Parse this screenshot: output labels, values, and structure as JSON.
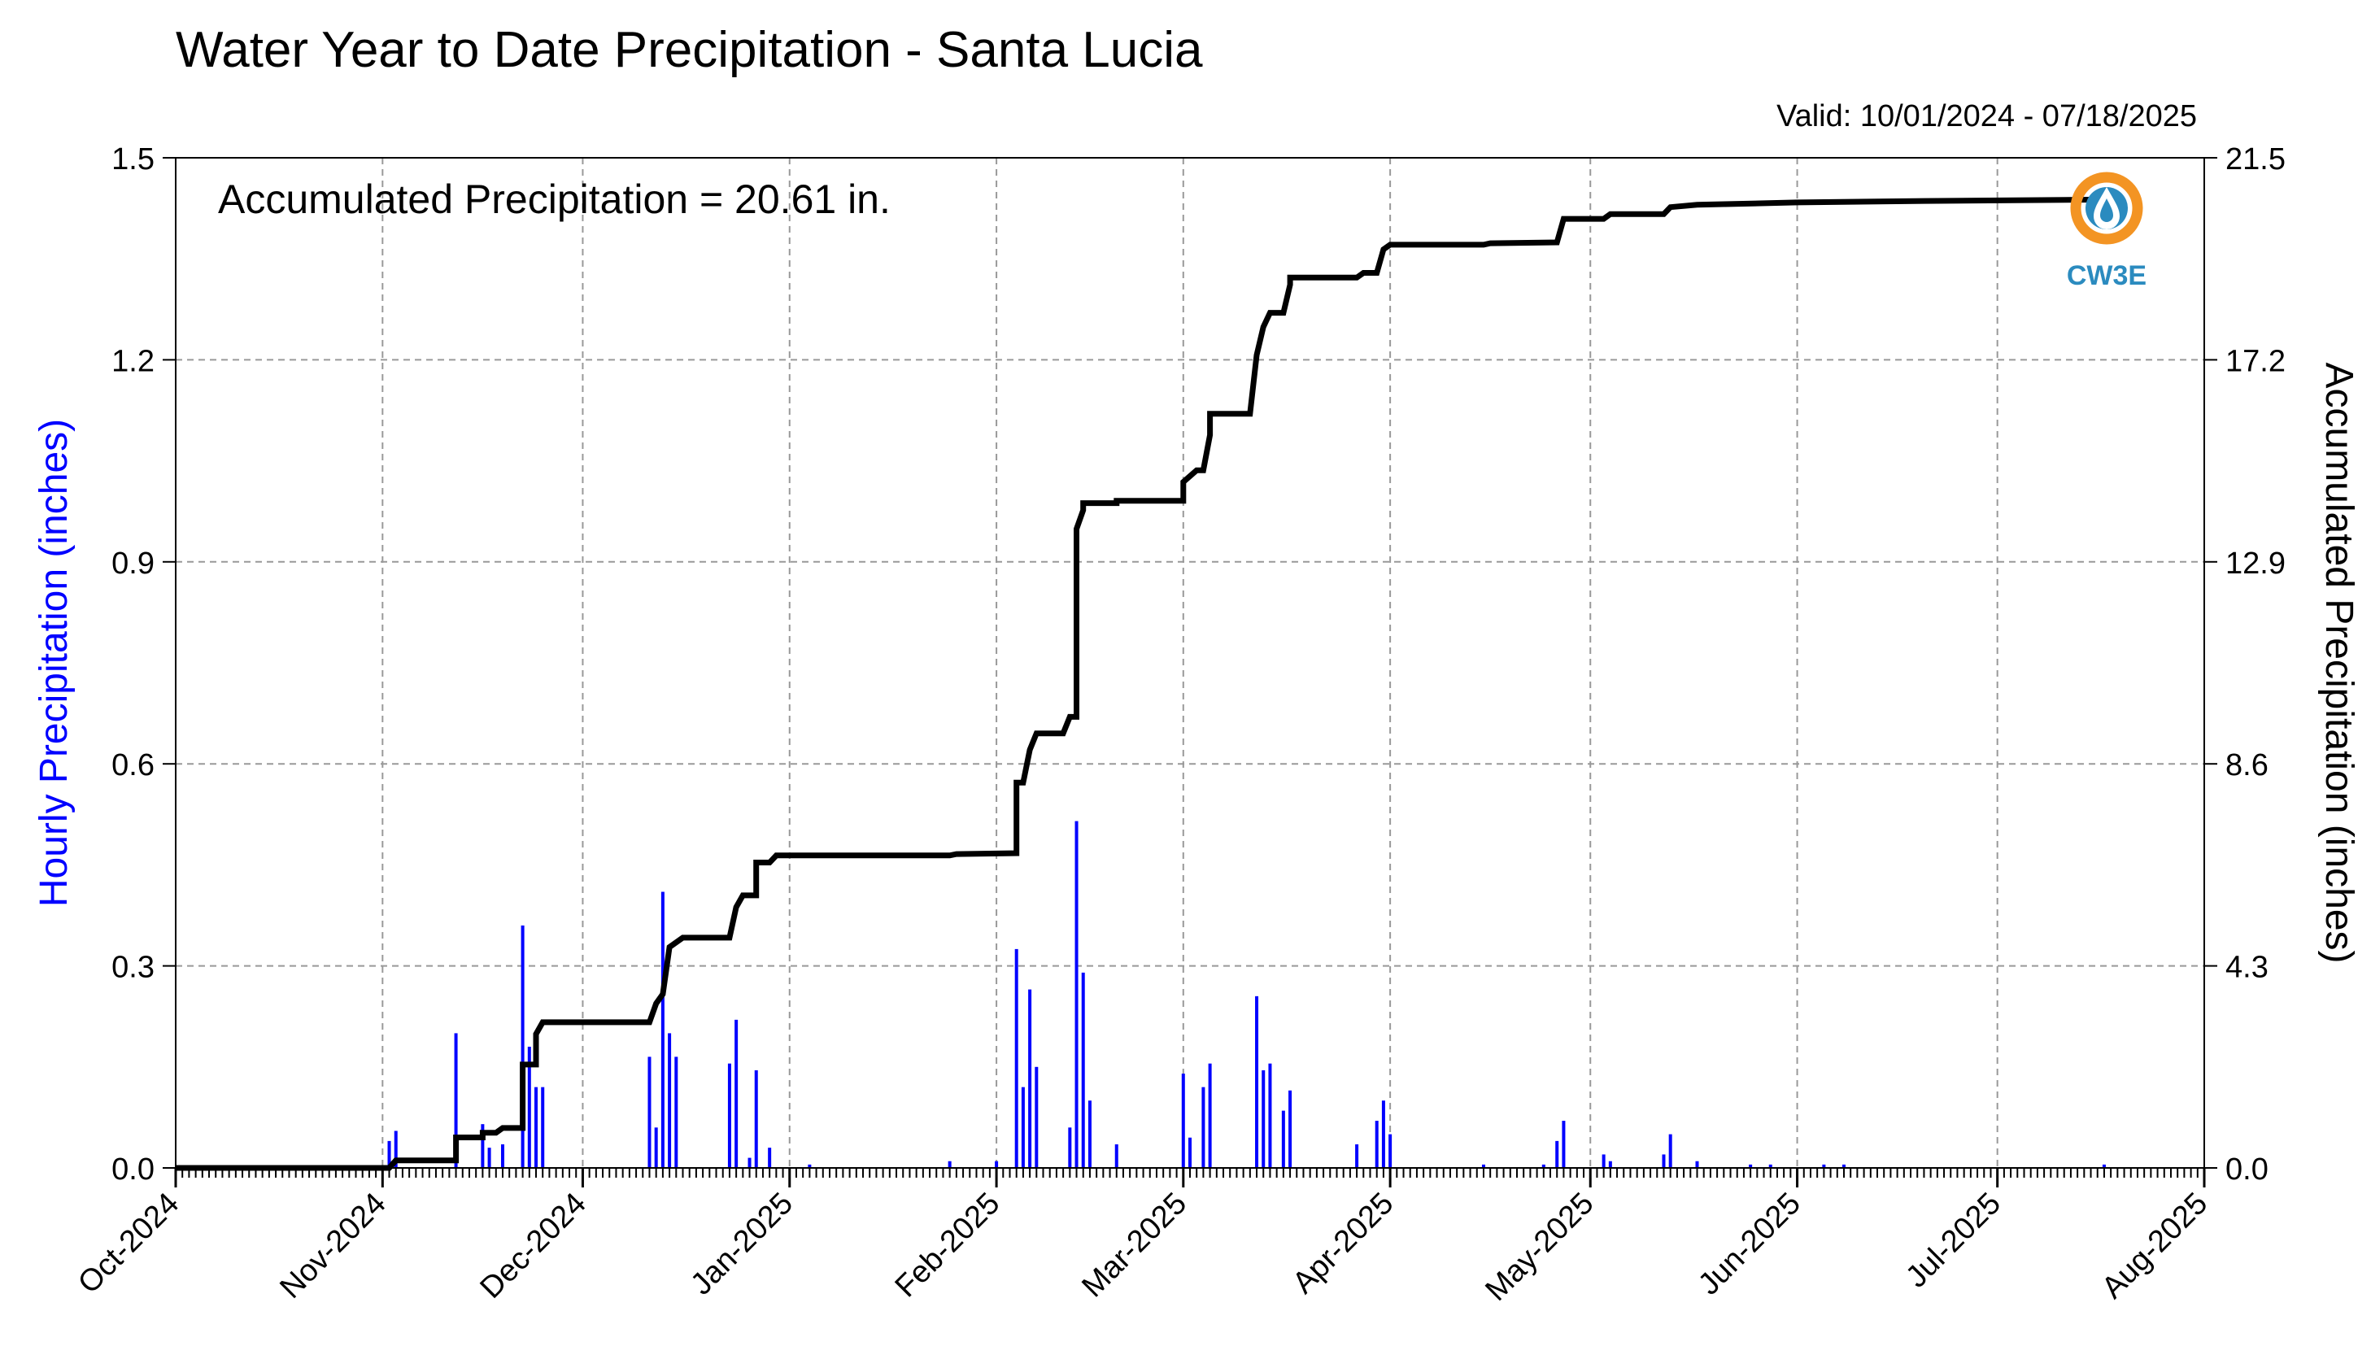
{
  "title": "Water Year to Date Precipitation - Santa Lucia",
  "valid_text": "Valid: 10/01/2024 - 07/18/2025",
  "annotation": "Accumulated Precipitation = 20.61 in.",
  "logo": {
    "text": "CW3E",
    "icon": "cw3e-logo-icon",
    "colors": {
      "ring": "#f39423",
      "drop": "#2b8bbf"
    }
  },
  "colors": {
    "hourly": "#0000ff",
    "accumulated": "#000000",
    "grid": "#999999"
  },
  "chart_data": {
    "type": "bar+line",
    "x_axis": {
      "type": "date",
      "range": [
        "2024-10-01",
        "2025-08-01"
      ],
      "tick_labels": [
        "Oct-2024",
        "Nov-2024",
        "Dec-2024",
        "Jan-2025",
        "Feb-2025",
        "Mar-2025",
        "Apr-2025",
        "May-2025",
        "Jun-2025",
        "Jul-2025",
        "Aug-2025"
      ],
      "tick_dates": [
        "2024-10-01",
        "2024-11-01",
        "2024-12-01",
        "2025-01-01",
        "2025-02-01",
        "2025-03-01",
        "2025-04-01",
        "2025-05-01",
        "2025-06-01",
        "2025-07-01",
        "2025-08-01"
      ],
      "minor_ticks": "daily"
    },
    "y_left": {
      "label": "Hourly Precipitation (inches)",
      "range": [
        0,
        1.5
      ],
      "ticks": [
        "0.0",
        "0.3",
        "0.6",
        "0.9",
        "1.2",
        "1.5"
      ]
    },
    "y_right": {
      "label": "Accumulated Precipitation (inches)",
      "range": [
        0,
        21.5
      ],
      "ticks": [
        "0.0",
        "4.3",
        "8.6",
        "12.9",
        "17.2",
        "21.5"
      ]
    },
    "grid": true,
    "series": [
      {
        "type": "bar",
        "axis": "left",
        "points": [
          [
            "2024-11-02",
            0.04
          ],
          [
            "2024-11-03",
            0.055
          ],
          [
            "2024-11-12",
            0.2
          ],
          [
            "2024-11-16",
            0.065
          ],
          [
            "2024-11-17",
            0.03
          ],
          [
            "2024-11-19",
            0.035
          ],
          [
            "2024-11-22",
            0.36
          ],
          [
            "2024-11-23",
            0.18
          ],
          [
            "2024-11-24",
            0.12
          ],
          [
            "2024-11-25",
            0.12
          ],
          [
            "2024-12-11",
            0.165
          ],
          [
            "2024-12-12",
            0.06
          ],
          [
            "2024-12-13",
            0.41
          ],
          [
            "2024-12-14",
            0.2
          ],
          [
            "2024-12-15",
            0.165
          ],
          [
            "2024-12-23",
            0.155
          ],
          [
            "2024-12-24",
            0.22
          ],
          [
            "2024-12-26",
            0.015
          ],
          [
            "2024-12-27",
            0.145
          ],
          [
            "2024-12-29",
            0.03
          ],
          [
            "2025-01-04",
            0.005
          ],
          [
            "2025-01-25",
            0.01
          ],
          [
            "2025-02-01",
            0.01
          ],
          [
            "2025-02-04",
            0.325
          ],
          [
            "2025-02-05",
            0.12
          ],
          [
            "2025-02-06",
            0.265
          ],
          [
            "2025-02-07",
            0.15
          ],
          [
            "2025-02-12",
            0.06
          ],
          [
            "2025-02-13",
            0.515
          ],
          [
            "2025-02-14",
            0.29
          ],
          [
            "2025-02-15",
            0.1
          ],
          [
            "2025-02-19",
            0.035
          ],
          [
            "2025-03-01",
            0.14
          ],
          [
            "2025-03-02",
            0.045
          ],
          [
            "2025-03-04",
            0.12
          ],
          [
            "2025-03-05",
            0.155
          ],
          [
            "2025-03-12",
            0.255
          ],
          [
            "2025-03-13",
            0.145
          ],
          [
            "2025-03-14",
            0.155
          ],
          [
            "2025-03-16",
            0.085
          ],
          [
            "2025-03-17",
            0.115
          ],
          [
            "2025-03-27",
            0.035
          ],
          [
            "2025-03-30",
            0.07
          ],
          [
            "2025-03-31",
            0.1
          ],
          [
            "2025-04-01",
            0.05
          ],
          [
            "2025-04-15",
            0.005
          ],
          [
            "2025-04-24",
            0.005
          ],
          [
            "2025-04-26",
            0.04
          ],
          [
            "2025-04-27",
            0.07
          ],
          [
            "2025-05-03",
            0.02
          ],
          [
            "2025-05-04",
            0.01
          ],
          [
            "2025-05-12",
            0.02
          ],
          [
            "2025-05-13",
            0.05
          ],
          [
            "2025-05-17",
            0.01
          ],
          [
            "2025-05-25",
            0.005
          ],
          [
            "2025-05-28",
            0.005
          ],
          [
            "2025-06-05",
            0.005
          ],
          [
            "2025-06-08",
            0.005
          ],
          [
            "2025-07-17",
            0.005
          ]
        ]
      },
      {
        "type": "line",
        "axis": "right",
        "points": [
          [
            "2024-10-01",
            0.0
          ],
          [
            "2024-11-02",
            0.0
          ],
          [
            "2024-11-03",
            0.16
          ],
          [
            "2024-11-12",
            0.16
          ],
          [
            "2024-11-12",
            0.65
          ],
          [
            "2024-11-16",
            0.65
          ],
          [
            "2024-11-16",
            0.75
          ],
          [
            "2024-11-18",
            0.75
          ],
          [
            "2024-11-19",
            0.85
          ],
          [
            "2024-11-22",
            0.85
          ],
          [
            "2024-11-22",
            2.2
          ],
          [
            "2024-11-24",
            2.2
          ],
          [
            "2024-11-24",
            2.85
          ],
          [
            "2024-11-25",
            3.1
          ],
          [
            "2024-12-11",
            3.1
          ],
          [
            "2024-12-12",
            3.5
          ],
          [
            "2024-12-13",
            3.7
          ],
          [
            "2024-12-14",
            4.7
          ],
          [
            "2024-12-16",
            4.9
          ],
          [
            "2024-12-23",
            4.9
          ],
          [
            "2024-12-24",
            5.55
          ],
          [
            "2024-12-25",
            5.8
          ],
          [
            "2024-12-27",
            5.8
          ],
          [
            "2024-12-27",
            6.5
          ],
          [
            "2024-12-29",
            6.5
          ],
          [
            "2024-12-30",
            6.65
          ],
          [
            "2025-01-25",
            6.65
          ],
          [
            "2025-01-26",
            6.68
          ],
          [
            "2025-02-04",
            6.7
          ],
          [
            "2025-02-04",
            8.2
          ],
          [
            "2025-02-05",
            8.2
          ],
          [
            "2025-02-06",
            8.9
          ],
          [
            "2025-02-07",
            9.25
          ],
          [
            "2025-02-11",
            9.25
          ],
          [
            "2025-02-12",
            9.6
          ],
          [
            "2025-02-13",
            9.6
          ],
          [
            "2025-02-13",
            13.1
          ],
          [
            "2025-02-13",
            13.6
          ],
          [
            "2025-02-14",
            14.0
          ],
          [
            "2025-02-14",
            14.15
          ],
          [
            "2025-02-19",
            14.15
          ],
          [
            "2025-02-19",
            14.2
          ],
          [
            "2025-03-01",
            14.2
          ],
          [
            "2025-03-01",
            14.6
          ],
          [
            "2025-03-03",
            14.85
          ],
          [
            "2025-03-04",
            14.85
          ],
          [
            "2025-03-05",
            15.6
          ],
          [
            "2025-03-05",
            16.05
          ],
          [
            "2025-03-11",
            16.05
          ],
          [
            "2025-03-12",
            17.3
          ],
          [
            "2025-03-13",
            17.9
          ],
          [
            "2025-03-14",
            18.2
          ],
          [
            "2025-03-16",
            18.2
          ],
          [
            "2025-03-17",
            18.8
          ],
          [
            "2025-03-17",
            18.95
          ],
          [
            "2025-03-27",
            18.95
          ],
          [
            "2025-03-28",
            19.05
          ],
          [
            "2025-03-30",
            19.05
          ],
          [
            "2025-03-31",
            19.55
          ],
          [
            "2025-04-01",
            19.65
          ],
          [
            "2025-04-15",
            19.65
          ],
          [
            "2025-04-16",
            19.68
          ],
          [
            "2025-04-26",
            19.7
          ],
          [
            "2025-04-27",
            20.2
          ],
          [
            "2025-05-03",
            20.2
          ],
          [
            "2025-05-04",
            20.3
          ],
          [
            "2025-05-12",
            20.3
          ],
          [
            "2025-05-13",
            20.45
          ],
          [
            "2025-05-17",
            20.5
          ],
          [
            "2025-06-01",
            20.55
          ],
          [
            "2025-06-20",
            20.58
          ],
          [
            "2025-07-17",
            20.61
          ],
          [
            "2025-07-18",
            20.61
          ]
        ]
      }
    ]
  }
}
